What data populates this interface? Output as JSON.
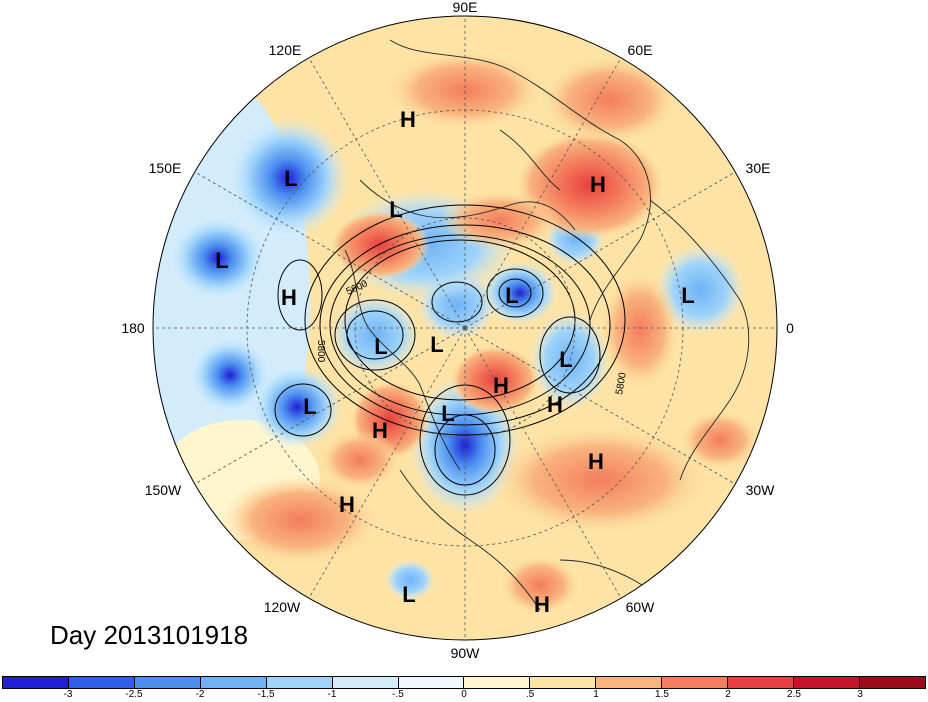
{
  "title": "Day 2013101918",
  "longitude_labels": [
    "90E",
    "60E",
    "30E",
    "0",
    "30W",
    "60W",
    "90W",
    "120W",
    "150W",
    "180",
    "150E",
    "120E"
  ],
  "contour_labels": [
    "5600",
    "5800",
    "5800"
  ],
  "pressure_centers": [
    {
      "type": "H"
    },
    {
      "type": "L"
    },
    {
      "type": "H"
    },
    {
      "type": "L"
    },
    {
      "type": "H"
    },
    {
      "type": "L"
    },
    {
      "type": "L"
    },
    {
      "type": "L"
    },
    {
      "type": "L"
    },
    {
      "type": "L"
    },
    {
      "type": "H"
    },
    {
      "type": "L"
    },
    {
      "type": "H"
    },
    {
      "type": "H"
    },
    {
      "type": "L"
    },
    {
      "type": "H"
    },
    {
      "type": "H"
    },
    {
      "type": "L"
    },
    {
      "type": "H"
    },
    {
      "type": "L"
    }
  ],
  "colorbar": {
    "ticks": [
      "-3",
      "-2.5",
      "-2",
      "-1.5",
      "-1",
      "-.5",
      "0",
      ".5",
      "1",
      "1.5",
      "2",
      "2.5",
      "3"
    ],
    "colors": [
      "#1f1fd6",
      "#2d5ee8",
      "#4b8ff0",
      "#6fb2f5",
      "#9fd4fa",
      "#d2ecfc",
      "#eef8fe",
      "#fff6cf",
      "#fde3a5",
      "#f9b47e",
      "#f47d5e",
      "#e8403f",
      "#c8142a",
      "#9c0c1c"
    ]
  }
}
